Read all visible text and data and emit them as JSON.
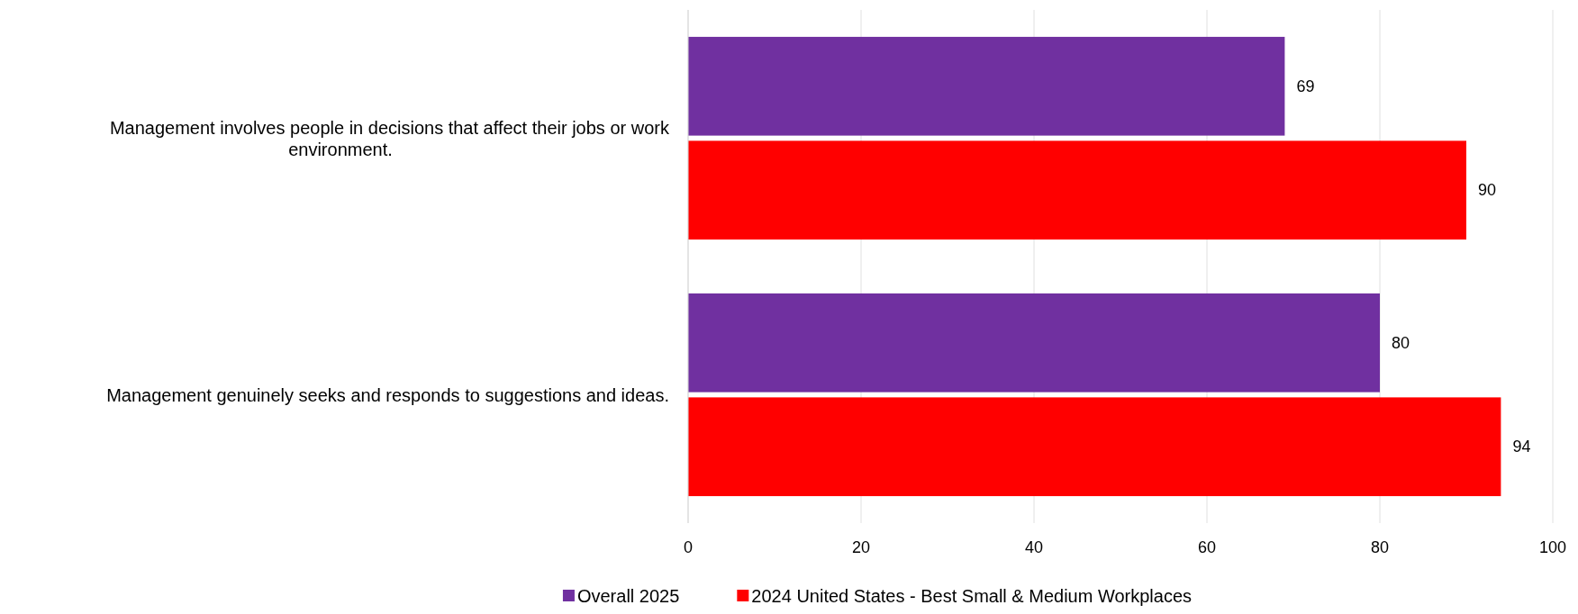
{
  "chart_data": {
    "type": "bar",
    "orientation": "horizontal",
    "categories": [
      "Management involves people in decisions that affect their jobs or work environment.",
      "Management genuinely seeks and responds to suggestions and ideas."
    ],
    "series": [
      {
        "name": "Overall 2025",
        "color": "#7030a0",
        "values": [
          69,
          80
        ]
      },
      {
        "name": "2024 United States - Best Small & Medium Workplaces",
        "color": "#ff0000",
        "values": [
          90,
          94
        ]
      }
    ],
    "xlim": [
      0,
      100
    ],
    "xticks": [
      0,
      20,
      40,
      60,
      80,
      100
    ],
    "grid": "x",
    "legend": "bottom",
    "data_labels": true
  }
}
